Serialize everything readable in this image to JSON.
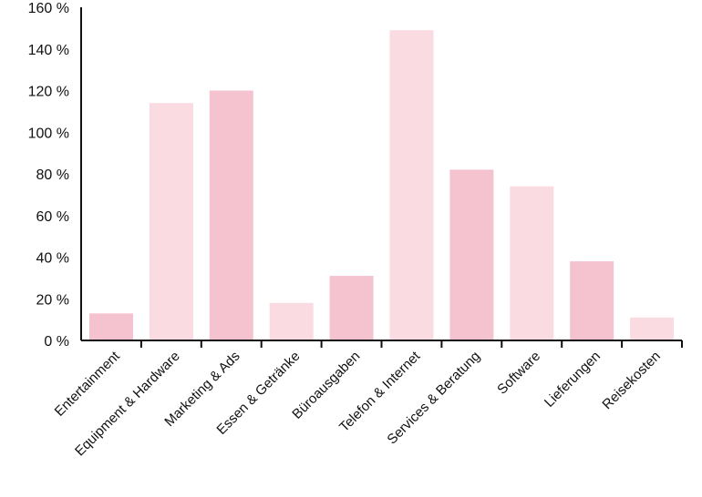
{
  "chart_data": {
    "type": "bar",
    "categories": [
      "Entertainment",
      "Equipment & Hardware",
      "Marketing & Ads",
      "Essen & Getränke",
      "Büroausgaben",
      "Telefon & Internet",
      "Services & Beratung",
      "Software",
      "Lieferungen",
      "Reisekosten"
    ],
    "values": [
      13,
      114,
      120,
      18,
      31,
      149,
      82,
      74,
      38,
      11
    ],
    "value_unit": "%",
    "ylim": [
      0,
      160
    ],
    "yticks": [
      0,
      20,
      40,
      60,
      80,
      100,
      120,
      140,
      160
    ],
    "ytick_labels": [
      "0 %",
      "20 %",
      "40 %",
      "60 %",
      "80 %",
      "100 %",
      "120 %",
      "140 %",
      "160 %"
    ],
    "title": "",
    "xlabel": "",
    "ylabel": "",
    "grid": false,
    "legend": "none",
    "colors": {
      "bar_dark": "#f5c3cf",
      "bar_light": "#fbdbe2",
      "axis": "#111111",
      "text": "#111111"
    },
    "bar_color_pattern": [
      "dark",
      "light",
      "dark",
      "light",
      "dark",
      "light",
      "dark",
      "light",
      "dark",
      "light"
    ]
  }
}
